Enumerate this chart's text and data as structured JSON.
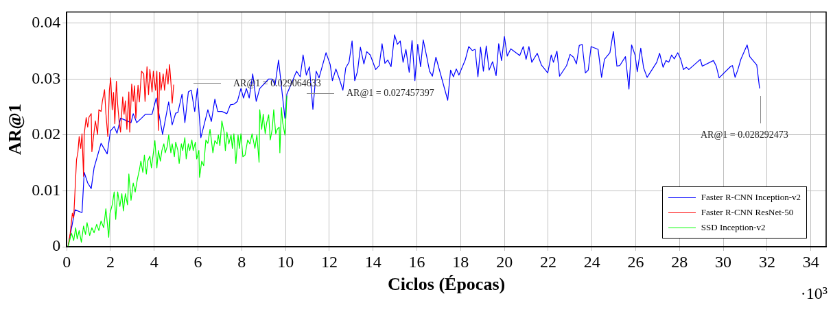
{
  "chart_data": {
    "type": "line",
    "xlabel": "Ciclos (Épocas)",
    "ylabel": "AR@1",
    "xlim": [
      0,
      34.7
    ],
    "xticks": [
      0,
      2,
      4,
      6,
      8,
      10,
      12,
      14,
      16,
      18,
      20,
      22,
      24,
      26,
      28,
      30,
      32,
      34
    ],
    "ylim": [
      0,
      0.042
    ],
    "yticks": [
      0,
      0.01,
      0.02,
      0.03,
      0.04
    ],
    "grid": true,
    "legend": "bottom right",
    "marker": "none",
    "line_style": "solid",
    "annotations": [
      "AR@1 = 0.029064633",
      "AR@1 = 0.027457397",
      "AR@1 = 0.028292473",
      "·10³"
    ],
    "series": [
      {
        "name": "Faster R-CNN Inception-v2",
        "color": "#0000ff",
        "x": [
          0.06,
          0.38,
          0.7,
          0.8,
          0.96,
          1.12,
          1.25,
          1.57,
          1.85,
          2.0,
          2.17,
          2.3,
          2.46,
          2.94,
          3.04,
          3.2,
          3.42,
          3.6,
          3.9,
          4.09,
          4.38,
          4.66,
          4.82,
          4.98,
          5.08,
          5.27,
          5.4,
          5.56,
          5.69,
          5.85,
          5.97,
          6.13,
          6.45,
          6.61,
          6.77,
          6.9,
          7.09,
          7.32,
          7.48,
          7.64,
          7.8,
          7.96,
          8.08,
          8.21,
          8.34,
          8.5,
          8.66,
          8.82,
          9.23,
          9.39,
          9.52,
          9.68,
          9.97,
          10.06,
          10.29,
          10.5,
          10.67,
          10.8,
          10.95,
          11.09,
          11.25,
          11.4,
          11.53,
          11.85,
          12.04,
          12.14,
          12.3,
          12.46,
          12.62,
          12.75,
          12.9,
          13.04,
          13.16,
          13.29,
          13.42,
          13.58,
          13.71,
          13.87,
          14.12,
          14.28,
          14.41,
          14.54,
          14.67,
          14.82,
          14.98,
          15.11,
          15.24,
          15.37,
          15.5,
          15.65,
          15.78,
          15.91,
          16.04,
          16.17,
          16.29,
          16.45,
          16.58,
          16.71,
          16.87,
          17.41,
          17.54,
          17.67,
          17.8,
          17.92,
          18.21,
          18.37,
          18.53,
          18.66,
          18.79,
          18.91,
          19.04,
          19.17,
          19.3,
          19.46,
          19.62,
          19.74,
          19.87,
          20.0,
          20.13,
          20.29,
          20.7,
          20.86,
          20.99,
          21.12,
          21.25,
          21.5,
          21.69,
          21.98,
          22.14,
          22.24,
          22.4,
          22.52,
          22.84,
          23.0,
          23.16,
          23.29,
          23.42,
          23.55,
          23.7,
          23.83,
          23.96,
          24.28,
          24.44,
          24.57,
          24.82,
          24.98,
          25.14,
          25.27,
          25.53,
          25.69,
          25.81,
          25.97,
          26.07,
          26.23,
          26.36,
          26.52,
          26.96,
          27.09,
          27.25,
          27.38,
          27.51,
          27.64,
          27.76,
          27.92,
          28.05,
          28.18,
          28.31,
          28.43,
          28.95,
          29.04,
          29.55,
          29.68,
          29.81,
          30.35,
          30.42,
          30.54,
          30.67,
          30.8,
          31.09,
          31.21,
          31.53,
          31.66
        ],
        "values": [
          0,
          0.0066,
          0.0061,
          0.0133,
          0.0114,
          0.0104,
          0.0141,
          0.0185,
          0.0166,
          0.0207,
          0.0215,
          0.0203,
          0.023,
          0.0222,
          0.0238,
          0.0222,
          0.023,
          0.0237,
          0.0237,
          0.0266,
          0.0201,
          0.0259,
          0.0218,
          0.0239,
          0.024,
          0.0273,
          0.0222,
          0.0277,
          0.028,
          0.0242,
          0.0283,
          0.0195,
          0.0245,
          0.0224,
          0.0264,
          0.0242,
          0.0242,
          0.0238,
          0.0254,
          0.0255,
          0.026,
          0.0283,
          0.0266,
          0.0283,
          0.0266,
          0.0309,
          0.026,
          0.0283,
          0.03,
          0.03,
          0.0289,
          0.0334,
          0.023,
          0.0273,
          0.0294,
          0.0314,
          0.0304,
          0.0343,
          0.0307,
          0.0322,
          0.0246,
          0.0314,
          0.0302,
          0.0347,
          0.0326,
          0.0297,
          0.0318,
          0.03,
          0.028,
          0.032,
          0.033,
          0.0368,
          0.0297,
          0.0314,
          0.0357,
          0.0327,
          0.0349,
          0.0343,
          0.0317,
          0.0324,
          0.0363,
          0.0328,
          0.0334,
          0.0322,
          0.0379,
          0.0362,
          0.0368,
          0.033,
          0.0353,
          0.0312,
          0.0369,
          0.0297,
          0.0362,
          0.0322,
          0.037,
          0.034,
          0.0314,
          0.0305,
          0.0339,
          0.0262,
          0.0316,
          0.0304,
          0.0318,
          0.0307,
          0.0334,
          0.0358,
          0.0351,
          0.0353,
          0.0304,
          0.0357,
          0.0314,
          0.0359,
          0.0316,
          0.0331,
          0.0306,
          0.0363,
          0.0333,
          0.0376,
          0.0341,
          0.0354,
          0.0342,
          0.0358,
          0.0335,
          0.0358,
          0.033,
          0.0346,
          0.0325,
          0.0311,
          0.0343,
          0.033,
          0.035,
          0.0305,
          0.0324,
          0.0344,
          0.0339,
          0.0327,
          0.036,
          0.0362,
          0.0311,
          0.0316,
          0.0358,
          0.0353,
          0.0303,
          0.0335,
          0.0347,
          0.0385,
          0.0323,
          0.0324,
          0.034,
          0.0282,
          0.0361,
          0.0343,
          0.0313,
          0.0355,
          0.032,
          0.0303,
          0.033,
          0.0346,
          0.0321,
          0.0333,
          0.033,
          0.0343,
          0.0336,
          0.0347,
          0.0336,
          0.0317,
          0.0321,
          0.0317,
          0.0335,
          0.0323,
          0.0333,
          0.0323,
          0.0302,
          0.0323,
          0.0324,
          0.0303,
          0.0317,
          0.0335,
          0.0361,
          0.034,
          0.0325,
          0.0283
        ]
      },
      {
        "name": "Faster R-CNN ResNet-50",
        "color": "#ff0000",
        "x": [
          0.06,
          0.16,
          0.26,
          0.32,
          0.45,
          0.51,
          0.57,
          0.64,
          0.7,
          0.77,
          0.8,
          0.89,
          0.96,
          1.02,
          1.12,
          1.15,
          1.25,
          1.31,
          1.41,
          1.47,
          1.57,
          1.63,
          1.73,
          1.79,
          1.88,
          1.95,
          2.01,
          2.08,
          2.14,
          2.2,
          2.27,
          2.33,
          2.4,
          2.46,
          2.56,
          2.62,
          2.68,
          2.75,
          2.84,
          2.88,
          2.97,
          3.04,
          3.1,
          3.16,
          3.26,
          3.32,
          3.42,
          3.52,
          3.58,
          3.67,
          3.74,
          3.8,
          3.9,
          3.96,
          4.06,
          4.12,
          4.19,
          4.25,
          4.31,
          4.41,
          4.47,
          4.57,
          4.63,
          4.7,
          4.76,
          4.82,
          4.89
        ],
        "values": [
          0,
          0.0024,
          0.006,
          0.0052,
          0.0156,
          0.0168,
          0.0197,
          0.0176,
          0.0202,
          0.0126,
          0.0201,
          0.0231,
          0.0214,
          0.0232,
          0.0238,
          0.017,
          0.0205,
          0.0225,
          0.0201,
          0.0245,
          0.0242,
          0.026,
          0.0281,
          0.0239,
          0.0197,
          0.028,
          0.0302,
          0.0245,
          0.0276,
          0.022,
          0.0296,
          0.0254,
          0.0222,
          0.0205,
          0.0268,
          0.0237,
          0.0261,
          0.021,
          0.0277,
          0.0205,
          0.0291,
          0.026,
          0.0288,
          0.023,
          0.0289,
          0.0259,
          0.0314,
          0.0309,
          0.026,
          0.0322,
          0.0272,
          0.0317,
          0.0277,
          0.0314,
          0.028,
          0.0314,
          0.0208,
          0.0312,
          0.028,
          0.0309,
          0.028,
          0.0318,
          0.0291,
          0.0326,
          0.0295,
          0.0257,
          0.029
        ]
      },
      {
        "name": "SSD Inception-v2",
        "color": "#00ff00",
        "x": [
          0.06,
          0.22,
          0.32,
          0.41,
          0.48,
          0.57,
          0.67,
          0.77,
          0.86,
          0.93,
          1.05,
          1.15,
          1.25,
          1.37,
          1.47,
          1.57,
          1.69,
          1.79,
          1.92,
          1.98,
          2.08,
          2.17,
          2.24,
          2.33,
          2.43,
          2.52,
          2.59,
          2.68,
          2.78,
          2.84,
          2.94,
          3.04,
          3.13,
          3.23,
          3.32,
          3.39,
          3.48,
          3.55,
          3.64,
          3.7,
          3.8,
          3.87,
          3.96,
          4.03,
          4.12,
          4.19,
          4.28,
          4.35,
          4.44,
          4.5,
          4.6,
          4.66,
          4.76,
          4.82,
          4.92,
          4.98,
          5.08,
          5.14,
          5.24,
          5.3,
          5.4,
          5.46,
          5.56,
          5.62,
          5.72,
          5.78,
          5.88,
          5.94,
          6.04,
          6.07,
          6.17,
          6.26,
          6.36,
          6.45,
          6.55,
          6.61,
          6.68,
          6.77,
          6.87,
          6.93,
          7.0,
          7.09,
          7.19,
          7.25,
          7.32,
          7.41,
          7.51,
          7.57,
          7.64,
          7.73,
          7.83,
          7.89,
          7.96,
          8.05,
          8.15,
          8.27,
          8.37,
          8.47,
          8.6,
          8.69,
          8.79,
          8.82,
          8.91,
          8.98,
          9.07,
          9.14,
          9.23,
          9.3,
          9.39,
          9.46,
          9.55,
          9.62,
          9.71,
          9.74,
          9.81,
          9.87,
          9.97,
          10.03,
          10.06
        ],
        "values": [
          0,
          0.0024,
          0.0011,
          0.0034,
          0.0014,
          0.0029,
          0.0008,
          0.0037,
          0.0022,
          0.0043,
          0.002,
          0.0034,
          0.0025,
          0.004,
          0.0029,
          0.0046,
          0.0034,
          0.0068,
          0.0017,
          0.006,
          0.0075,
          0.0098,
          0.0049,
          0.0098,
          0.0072,
          0.0095,
          0.0064,
          0.0095,
          0.0075,
          0.013,
          0.0083,
          0.0114,
          0.0098,
          0.0121,
          0.0137,
          0.0153,
          0.0133,
          0.0164,
          0.013,
          0.0153,
          0.0162,
          0.0141,
          0.0168,
          0.019,
          0.0141,
          0.0172,
          0.0153,
          0.0172,
          0.0184,
          0.0168,
          0.018,
          0.02,
          0.0168,
          0.0184,
          0.0161,
          0.0187,
          0.0172,
          0.0149,
          0.0184,
          0.0172,
          0.0195,
          0.0157,
          0.0184,
          0.0172,
          0.0191,
          0.0172,
          0.0187,
          0.0157,
          0.0172,
          0.0124,
          0.0153,
          0.0145,
          0.0191,
          0.0185,
          0.021,
          0.0191,
          0.0168,
          0.019,
          0.0184,
          0.02,
          0.0181,
          0.0225,
          0.0205,
          0.0172,
          0.0205,
          0.0184,
          0.02,
          0.0176,
          0.0202,
          0.0149,
          0.02,
          0.0176,
          0.0202,
          0.0161,
          0.0164,
          0.0191,
          0.0184,
          0.0202,
          0.0176,
          0.02,
          0.0151,
          0.0245,
          0.021,
          0.0237,
          0.0202,
          0.0222,
          0.0236,
          0.0191,
          0.021,
          0.0245,
          0.0202,
          0.021,
          0.0214,
          0.0168,
          0.0249,
          0.0222,
          0.02,
          0.0242,
          0.027
        ]
      }
    ]
  }
}
